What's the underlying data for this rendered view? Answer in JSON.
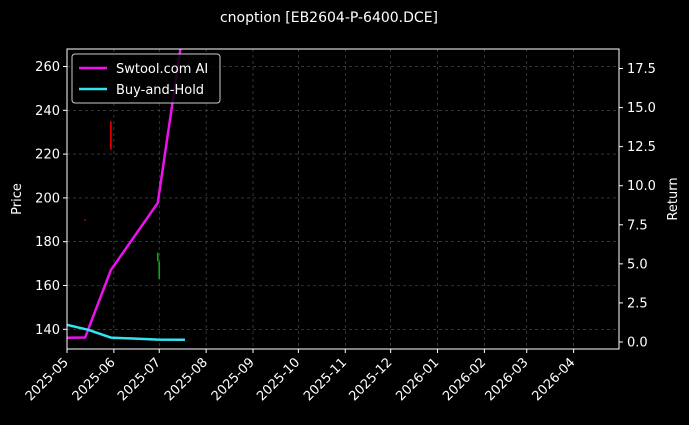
{
  "chart_data": {
    "type": "line",
    "title": "cnoption [EB2604-P-6400.DCE]",
    "ylabel_left": "Price",
    "ylabel_right": "Return",
    "xlim": [
      "2025-05-01",
      "2026-05-01"
    ],
    "ylim_left": [
      131,
      268
    ],
    "ylim_right": [
      -0.45,
      18.75
    ],
    "x_ticks": [
      "2025-05",
      "2025-06",
      "2025-07",
      "2025-08",
      "2025-09",
      "2025-10",
      "2025-11",
      "2025-12",
      "2026-01",
      "2026-02",
      "2026-03",
      "2026-04"
    ],
    "x_tick_dates": [
      "2025-05-01",
      "2025-06-01",
      "2025-07-01",
      "2025-08-01",
      "2025-09-01",
      "2025-10-01",
      "2025-11-01",
      "2025-12-01",
      "2026-01-01",
      "2026-02-01",
      "2026-03-01",
      "2026-04-01"
    ],
    "y_ticks_left": [
      "140",
      "160",
      "180",
      "200",
      "220",
      "240",
      "260"
    ],
    "y_ticks_right": [
      "0.0",
      "2.5",
      "5.0",
      "7.5",
      "10.0",
      "12.5",
      "15.0",
      "17.5"
    ],
    "grid": true,
    "legend_position": "top-left",
    "series": [
      {
        "name": "Swtool.com AI",
        "axis": "right",
        "color": "#ee11ee",
        "points": [
          {
            "x": "2025-05-01",
            "y": 0.27
          },
          {
            "x": "2025-05-13",
            "y": 0.29
          },
          {
            "x": "2025-05-30",
            "y": 4.6
          },
          {
            "x": "2025-06-30",
            "y": 8.9
          },
          {
            "x": "2025-07-15",
            "y": 18.75
          }
        ]
      },
      {
        "name": "Buy-and-Hold",
        "axis": "right",
        "color": "#33e3ee",
        "points": [
          {
            "x": "2025-05-01",
            "y": 1.1
          },
          {
            "x": "2025-05-15",
            "y": 0.78
          },
          {
            "x": "2025-05-30",
            "y": 0.28
          },
          {
            "x": "2025-06-30",
            "y": 0.15
          },
          {
            "x": "2025-07-18",
            "y": 0.14
          }
        ]
      }
    ],
    "candles": [
      {
        "x": "2025-05-13",
        "low": 189.5,
        "high": 190.3,
        "color": "#b00000"
      },
      {
        "x": "2025-05-30",
        "low": 222,
        "high": 235,
        "color": "#ee0000"
      },
      {
        "x": "2025-06-30",
        "low": 171,
        "high": 175,
        "color": "#11aa11"
      },
      {
        "x": "2025-07-01",
        "low": 163,
        "high": 171,
        "color": "#11aa11"
      }
    ]
  }
}
